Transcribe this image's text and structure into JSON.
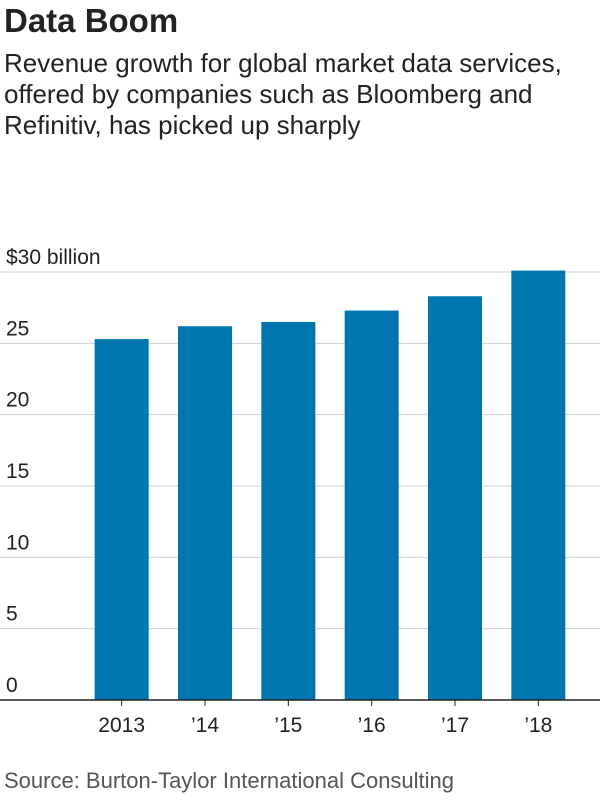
{
  "title": "Data Boom",
  "subtitle": "Revenue growth for global market data services, offered by companies such as Bloomberg and Refinitiv, has picked up sharply",
  "source": "Source: Burton-Taylor International Consulting",
  "colors": {
    "bar": "#0076ae",
    "grid": "#d0d0d0",
    "axis": "#222222",
    "text": "#222222"
  },
  "chart_data": {
    "type": "bar",
    "title": "Data Boom",
    "categories": [
      "2013",
      "’14",
      "’15",
      "’16",
      "’17",
      "’18"
    ],
    "values": [
      25.3,
      26.2,
      26.5,
      27.3,
      28.3,
      30.1
    ],
    "ylim": [
      0,
      30
    ],
    "yticks": [
      0,
      5,
      10,
      15,
      20,
      25,
      30
    ],
    "ytick_labels": [
      "0",
      "5",
      "10",
      "15",
      "20",
      "25",
      "$30 billion"
    ],
    "xlabel": "",
    "ylabel": "",
    "grid": true
  }
}
